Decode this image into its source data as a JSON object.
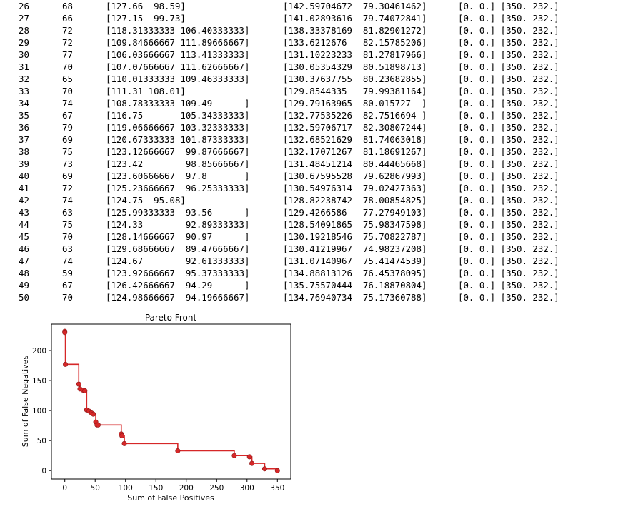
{
  "log": {
    "rows": [
      {
        "gen": "26",
        "n": "68",
        "a": "[127.66  98.59]",
        "b": "[142.59704672  79.30461462]",
        "c": "[0. 0.] [350. 232.]"
      },
      {
        "gen": "27",
        "n": "66",
        "a": "[127.15  99.73]",
        "b": "[141.02893616  79.74072841]",
        "c": "[0. 0.] [350. 232.]"
      },
      {
        "gen": "28",
        "n": "72",
        "a": "[118.31333333 106.40333333]",
        "b": "[138.33378169  81.82901272]",
        "c": "[0. 0.] [350. 232.]"
      },
      {
        "gen": "29",
        "n": "72",
        "a": "[109.84666667 111.89666667]",
        "b": "[133.6212676   82.15785206]",
        "c": "[0. 0.] [350. 232.]"
      },
      {
        "gen": "30",
        "n": "77",
        "a": "[106.03666667 113.41333333]",
        "b": "[131.10223233  81.27817966]",
        "c": "[0. 0.] [350. 232.]"
      },
      {
        "gen": "31",
        "n": "70",
        "a": "[107.07666667 111.62666667]",
        "b": "[130.05354329  80.51898713]",
        "c": "[0. 0.] [350. 232.]"
      },
      {
        "gen": "32",
        "n": "65",
        "a": "[110.01333333 109.46333333]",
        "b": "[130.37637755  80.23682855]",
        "c": "[0. 0.] [350. 232.]"
      },
      {
        "gen": "33",
        "n": "70",
        "a": "[111.31 108.01]",
        "b": "[129.8544335   79.99381164]",
        "c": "[0. 0.] [350. 232.]"
      },
      {
        "gen": "34",
        "n": "74",
        "a": "[108.78333333 109.49      ]",
        "b": "[129.79163965  80.015727  ]",
        "c": "[0. 0.] [350. 232.]"
      },
      {
        "gen": "35",
        "n": "67",
        "a": "[116.75       105.34333333]",
        "b": "[132.77535226  82.7516694 ]",
        "c": "[0. 0.] [350. 232.]"
      },
      {
        "gen": "36",
        "n": "79",
        "a": "[119.06666667 103.32333333]",
        "b": "[132.59706717  82.30807244]",
        "c": "[0. 0.] [350. 232.]"
      },
      {
        "gen": "37",
        "n": "69",
        "a": "[120.67333333 101.87333333]",
        "b": "[132.68521629  81.74063018]",
        "c": "[0. 0.] [350. 232.]"
      },
      {
        "gen": "38",
        "n": "75",
        "a": "[123.12666667  99.87666667]",
        "b": "[132.17071267  81.18691267]",
        "c": "[0. 0.] [350. 232.]"
      },
      {
        "gen": "39",
        "n": "73",
        "a": "[123.42        98.85666667]",
        "b": "[131.48451214  80.44465668]",
        "c": "[0. 0.] [350. 232.]"
      },
      {
        "gen": "40",
        "n": "69",
        "a": "[123.60666667  97.8       ]",
        "b": "[130.67595528  79.62867993]",
        "c": "[0. 0.] [350. 232.]"
      },
      {
        "gen": "41",
        "n": "72",
        "a": "[125.23666667  96.25333333]",
        "b": "[130.54976314  79.02427363]",
        "c": "[0. 0.] [350. 232.]"
      },
      {
        "gen": "42",
        "n": "74",
        "a": "[124.75  95.08]",
        "b": "[128.82238742  78.00854825]",
        "c": "[0. 0.] [350. 232.]"
      },
      {
        "gen": "43",
        "n": "63",
        "a": "[125.99333333  93.56      ]",
        "b": "[129.4266586   77.27949103]",
        "c": "[0. 0.] [350. 232.]"
      },
      {
        "gen": "44",
        "n": "75",
        "a": "[124.33        92.89333333]",
        "b": "[128.54091865  75.98347598]",
        "c": "[0. 0.] [350. 232.]"
      },
      {
        "gen": "45",
        "n": "70",
        "a": "[128.14666667  90.97      ]",
        "b": "[130.19218546  75.70822787]",
        "c": "[0. 0.] [350. 232.]"
      },
      {
        "gen": "46",
        "n": "63",
        "a": "[129.68666667  89.47666667]",
        "b": "[130.41219967  74.98237208]",
        "c": "[0. 0.] [350. 232.]"
      },
      {
        "gen": "47",
        "n": "74",
        "a": "[124.67        92.61333333]",
        "b": "[131.07140967  75.41474539]",
        "c": "[0. 0.] [350. 232.]"
      },
      {
        "gen": "48",
        "n": "59",
        "a": "[123.92666667  95.37333333]",
        "b": "[134.88813126  76.45378095]",
        "c": "[0. 0.] [350. 232.]"
      },
      {
        "gen": "49",
        "n": "67",
        "a": "[126.42666667  94.29      ]",
        "b": "[135.75570444  76.18870804]",
        "c": "[0. 0.] [350. 232.]"
      },
      {
        "gen": "50",
        "n": "70",
        "a": "[124.98666667  94.19666667]",
        "b": "[134.76940734  75.17360788]",
        "c": "[0. 0.] [350. 232.]"
      }
    ]
  },
  "chart_data": {
    "type": "line",
    "title": "Pareto Front",
    "xlabel": "Sum of False Positives",
    "ylabel": "Sum of False Negatives",
    "xlim": [
      -22,
      372
    ],
    "ylim": [
      -14,
      244
    ],
    "xticks": [
      0,
      50,
      100,
      150,
      200,
      250,
      300,
      350
    ],
    "yticks": [
      0,
      50,
      100,
      150,
      200
    ],
    "step": "post",
    "grid": false,
    "color": "#d62728",
    "series": [
      {
        "points": [
          [
            0,
            232
          ],
          [
            0,
            230
          ],
          [
            1,
            177
          ],
          [
            23,
            144
          ],
          [
            25,
            136
          ],
          [
            30,
            134
          ],
          [
            33,
            133
          ],
          [
            36,
            101
          ],
          [
            40,
            99
          ],
          [
            44,
            96
          ],
          [
            47,
            94
          ],
          [
            51,
            81
          ],
          [
            53,
            76
          ],
          [
            55,
            76
          ],
          [
            93,
            61
          ],
          [
            94,
            58
          ],
          [
            98,
            45
          ],
          [
            186,
            33
          ],
          [
            279,
            25
          ],
          [
            304,
            23
          ],
          [
            308,
            12
          ],
          [
            329,
            3
          ],
          [
            350,
            0
          ]
        ]
      }
    ]
  }
}
